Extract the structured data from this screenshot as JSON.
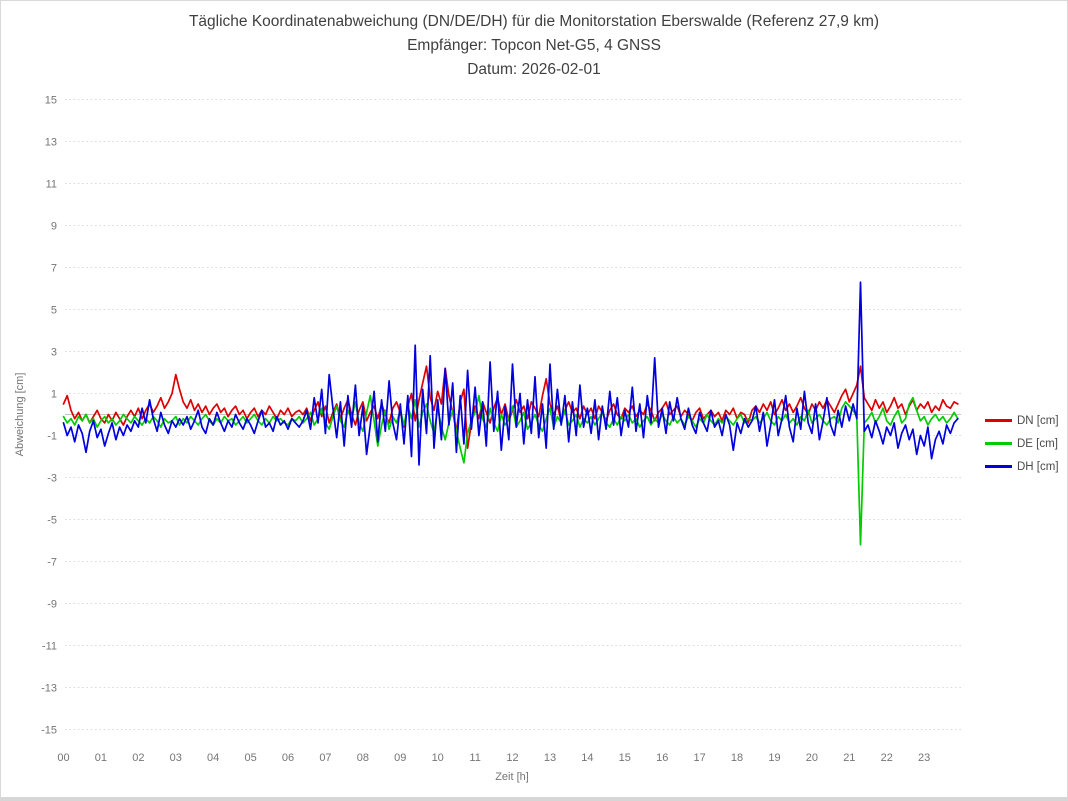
{
  "window": {
    "background": "#ffffff",
    "border_color": "#d9d9d9"
  },
  "chart_data": {
    "type": "line",
    "title_lines": [
      "Tägliche Koordinatenabweichung (DN/DE/DH) für die Monitorstation Eberswalde (Referenz 27,9 km)",
      "Empfänger: Topcon Net-G5, 4 GNSS",
      "Datum: 2026-02-01"
    ],
    "xlabel": "Zeit [h]",
    "ylabel": "Abweichung [cm]",
    "xlim": [
      0,
      24
    ],
    "ylim": [
      -15,
      15
    ],
    "x_ticks": [
      "00",
      "01",
      "02",
      "03",
      "04",
      "05",
      "06",
      "07",
      "08",
      "09",
      "10",
      "11",
      "12",
      "13",
      "14",
      "15",
      "16",
      "17",
      "18",
      "19",
      "20",
      "21",
      "22",
      "23"
    ],
    "y_ticks": [
      15,
      13,
      11,
      9,
      7,
      5,
      3,
      1,
      -1,
      -3,
      -5,
      -7,
      -9,
      -11,
      -13,
      -15
    ],
    "grid": "horizontal-dotted",
    "zero_line": true,
    "legend_position": "right",
    "tick_color": "#757575",
    "grid_color": "#d9d9d9",
    "zero_line_color": "#c4c4c4",
    "x_start": 0.0,
    "x_step": 0.1,
    "series": [
      {
        "name": "DN [cm]",
        "color": "#dd0000",
        "values": [
          0.5,
          0.9,
          0.2,
          -0.2,
          0.1,
          -0.3,
          0.0,
          -0.4,
          -0.1,
          0.2,
          -0.2,
          -0.4,
          0.0,
          -0.3,
          0.1,
          -0.2,
          -0.5,
          -0.1,
          0.2,
          -0.1,
          0.3,
          -0.2,
          0.2,
          0.5,
          0.1,
          0.4,
          0.8,
          0.3,
          0.6,
          1.0,
          1.9,
          1.2,
          0.6,
          0.3,
          0.7,
          0.2,
          0.5,
          0.1,
          0.4,
          0.0,
          0.3,
          0.5,
          0.1,
          0.3,
          -0.1,
          0.2,
          0.4,
          0.0,
          0.2,
          -0.2,
          0.1,
          0.3,
          -0.1,
          0.2,
          0.0,
          0.4,
          0.1,
          -0.2,
          0.2,
          0.0,
          0.3,
          -0.1,
          0.1,
          0.2,
          0.0,
          0.3,
          -0.3,
          0.2,
          0.6,
          -0.1,
          0.4,
          -0.4,
          0.1,
          0.5,
          -0.2,
          0.3,
          0.7,
          0.0,
          -0.5,
          0.2,
          0.6,
          -0.3,
          0.1,
          0.4,
          -0.2,
          0.5,
          0.0,
          -0.4,
          0.3,
          0.6,
          0.1,
          -0.6,
          0.4,
          1.0,
          -0.3,
          0.7,
          1.5,
          2.3,
          0.8,
          0.2,
          1.1,
          0.5,
          2.2,
          0.9,
          0.1,
          -0.8,
          0.6,
          1.2,
          -1.6,
          -0.4,
          0.4,
          -0.2,
          0.6,
          0.1,
          -0.4,
          0.3,
          0.8,
          0.0,
          0.5,
          -0.3,
          0.2,
          0.7,
          0.1,
          0.4,
          -0.2,
          0.6,
          0.3,
          -0.1,
          0.9,
          1.7,
          0.5,
          0.0,
          0.4,
          -0.3,
          0.2,
          0.6,
          0.1,
          0.3,
          -0.2,
          0.4,
          0.0,
          0.3,
          -0.2,
          0.4,
          0.1,
          -0.3,
          0.2,
          0.5,
          0.0,
          -0.2,
          0.3,
          0.1,
          0.4,
          -0.1,
          0.2,
          0.0,
          0.5,
          0.2,
          -0.3,
          0.1,
          0.3,
          0.6,
          0.0,
          0.2,
          0.4,
          -0.1,
          0.2,
          0.0,
          -0.3,
          0.1,
          0.3,
          -0.2,
          0.0,
          0.2,
          -0.1,
          0.1,
          -0.3,
          0.2,
          0.0,
          0.3,
          -0.2,
          0.1,
          0.0,
          -0.4,
          0.2,
          0.4,
          0.1,
          0.5,
          0.2,
          0.6,
          0.0,
          0.3,
          0.7,
          0.2,
          0.5,
          0.1,
          0.4,
          0.8,
          0.3,
          0.0,
          0.5,
          0.2,
          0.6,
          0.3,
          0.7,
          0.4,
          0.1,
          0.5,
          0.9,
          1.2,
          0.6,
          1.0,
          1.4,
          2.3,
          0.8,
          0.5,
          0.2,
          0.7,
          0.3,
          0.6,
          0.1,
          0.4,
          0.8,
          0.3,
          0.5,
          0.0,
          0.4,
          0.7,
          0.2,
          0.5,
          0.3,
          0.6,
          0.1,
          0.4,
          0.2,
          0.7,
          0.4,
          0.3,
          0.6,
          0.5
        ]
      },
      {
        "name": "DE [cm]",
        "color": "#00cc00",
        "values": [
          -0.1,
          -0.4,
          -0.2,
          -0.5,
          -0.1,
          -0.3,
          0.0,
          -0.4,
          -0.2,
          -0.6,
          -0.3,
          -0.1,
          -0.4,
          -0.2,
          -0.5,
          -0.3,
          0.0,
          -0.2,
          -0.4,
          -0.1,
          -0.3,
          -0.5,
          -0.2,
          -0.4,
          -0.1,
          -0.3,
          -0.6,
          -0.2,
          -0.4,
          -0.3,
          -0.1,
          -0.5,
          -0.2,
          -0.4,
          -0.1,
          -0.3,
          -0.5,
          -0.2,
          0.0,
          -0.3,
          -0.5,
          -0.2,
          -0.4,
          -0.1,
          -0.3,
          -0.2,
          -0.5,
          -0.3,
          -0.1,
          -0.4,
          -0.2,
          0.0,
          -0.3,
          -0.5,
          -0.2,
          -0.4,
          -0.1,
          -0.3,
          -0.2,
          -0.4,
          -0.5,
          -0.2,
          -0.3,
          -0.1,
          -0.4,
          -0.2,
          0.1,
          -0.5,
          -0.2,
          0.3,
          -0.4,
          -0.7,
          -0.1,
          0.4,
          -0.3,
          -0.6,
          0.2,
          -0.2,
          0.6,
          -0.4,
          -0.8,
          0.1,
          0.9,
          -0.3,
          -1.5,
          -0.5,
          0.2,
          -0.7,
          -0.1,
          -0.4,
          0.2,
          -0.5,
          0.4,
          -0.2,
          0.7,
          -0.6,
          0.1,
          0.5,
          -0.3,
          -0.9,
          0.3,
          -0.6,
          -1.2,
          -0.4,
          0.2,
          -0.8,
          -1.6,
          -2.3,
          -0.9,
          -0.3,
          0.1,
          0.9,
          -0.2,
          -0.6,
          0.3,
          -0.4,
          -0.8,
          0.0,
          -0.5,
          -0.2,
          0.4,
          -0.6,
          -0.3,
          0.1,
          -0.7,
          -0.4,
          0.0,
          -0.5,
          -0.8,
          -0.2,
          0.3,
          -0.6,
          -0.1,
          -0.4,
          0.2,
          -0.5,
          -0.3,
          0.0,
          -0.6,
          -0.2,
          -0.4,
          -0.1,
          -0.5,
          -0.2,
          0.1,
          -0.4,
          -0.6,
          -0.2,
          -0.5,
          -0.1,
          -0.3,
          0.0,
          -0.4,
          -0.2,
          -0.6,
          -0.3,
          -0.1,
          -0.5,
          -0.2,
          -0.4,
          0.0,
          -0.3,
          -0.5,
          -0.1,
          -0.4,
          -0.2,
          -0.5,
          -0.1,
          -0.3,
          -0.6,
          -0.2,
          -0.4,
          0.0,
          -0.3,
          -0.5,
          -0.2,
          -0.4,
          -0.1,
          -0.3,
          -0.5,
          -0.2,
          0.0,
          -0.4,
          -0.2,
          -0.3,
          -0.1,
          -0.4,
          -0.2,
          0.1,
          -0.3,
          -0.5,
          -0.1,
          -0.3,
          0.0,
          -0.4,
          -0.2,
          -0.5,
          -0.1,
          -0.3,
          0.2,
          -0.4,
          -0.2,
          0.0,
          -0.3,
          -0.5,
          -0.2,
          -0.1,
          -0.4,
          0.3,
          0.6,
          0.4,
          0.2,
          -0.1,
          -6.2,
          -0.4,
          -0.2,
          0.1,
          -0.4,
          -0.1,
          0.3,
          -0.3,
          -0.5,
          -0.1,
          0.2,
          -0.4,
          -0.2,
          0.5,
          0.8,
          0.2,
          -0.3,
          -0.1,
          -0.5,
          -0.2,
          0.0,
          -0.3,
          -0.1,
          -0.4,
          -0.2,
          0.1,
          -0.2
        ]
      },
      {
        "name": "DH [cm]",
        "color": "#0000dd",
        "values": [
          -0.4,
          -1.0,
          -0.6,
          -1.3,
          -0.5,
          -0.9,
          -1.8,
          -0.8,
          -0.3,
          -1.1,
          -0.7,
          -1.5,
          -0.9,
          -0.4,
          -1.2,
          -0.6,
          -1.0,
          -0.5,
          -0.8,
          -0.3,
          -0.6,
          0.3,
          -0.4,
          0.7,
          -0.2,
          -0.8,
          0.1,
          -0.5,
          -0.9,
          -0.3,
          -0.6,
          -0.2,
          -0.5,
          -0.1,
          -0.7,
          -0.3,
          0.2,
          -0.6,
          -0.9,
          -0.2,
          -0.5,
          0.1,
          -0.4,
          -0.8,
          -0.3,
          -0.6,
          0.0,
          -0.4,
          -0.7,
          -0.2,
          -0.5,
          -0.9,
          -0.3,
          0.2,
          -0.6,
          -0.4,
          -0.8,
          -0.1,
          -0.5,
          -0.3,
          -0.7,
          -0.2,
          -0.4,
          -0.6,
          -0.3,
          0.2,
          -0.7,
          0.8,
          -0.4,
          1.2,
          -0.9,
          1.9,
          0.3,
          -1.1,
          0.6,
          -1.5,
          0.9,
          -0.6,
          1.4,
          -1.0,
          0.4,
          -1.9,
          -0.5,
          1.1,
          -1.3,
          0.7,
          -0.8,
          1.6,
          -0.4,
          -1.2,
          0.5,
          -1.4,
          0.9,
          -2.0,
          3.3,
          -2.4,
          1.2,
          -0.9,
          2.8,
          -1.6,
          0.7,
          -1.2,
          2.2,
          -0.5,
          1.5,
          -1.8,
          0.9,
          -1.4,
          2.1,
          -0.7,
          1.3,
          -1.0,
          0.6,
          -1.5,
          2.5,
          -0.8,
          1.1,
          -1.7,
          0.4,
          -1.2,
          2.4,
          -0.6,
          1.0,
          -1.4,
          0.7,
          -0.9,
          1.8,
          -1.1,
          0.5,
          -1.6,
          2.4,
          -0.7,
          1.2,
          -0.5,
          0.9,
          -1.3,
          0.6,
          -1.0,
          1.4,
          -0.6,
          0.3,
          -0.9,
          0.7,
          -1.2,
          0.4,
          -0.7,
          1.1,
          -0.5,
          0.8,
          -1.0,
          0.2,
          -0.6,
          1.3,
          -0.8,
          0.5,
          -1.1,
          0.9,
          -0.4,
          2.7,
          -0.6,
          0.3,
          -0.9,
          0.6,
          -0.3,
          0.8,
          -0.2,
          -0.7,
          0.3,
          -0.5,
          -0.9,
          0.1,
          -0.4,
          -0.8,
          0.2,
          -0.6,
          -0.3,
          -1.0,
          0.0,
          -0.5,
          -1.7,
          -0.4,
          -0.9,
          -0.2,
          -0.6,
          -0.3,
          0.4,
          -0.8,
          0.1,
          -1.5,
          -0.5,
          0.7,
          -1.0,
          -0.2,
          0.9,
          -0.6,
          -1.3,
          0.3,
          -0.7,
          1.1,
          -0.4,
          -0.9,
          0.5,
          -1.2,
          -0.3,
          0.8,
          -0.5,
          -1.0,
          0.2,
          -0.6,
          0.4,
          -0.3,
          0.5,
          -0.2,
          6.3,
          -0.8,
          -0.5,
          -1.1,
          -0.3,
          -0.8,
          -1.4,
          -0.6,
          -1.0,
          -0.4,
          -1.6,
          -0.9,
          -0.5,
          -1.2,
          -0.7,
          -1.9,
          -1.0,
          -1.5,
          -0.6,
          -2.1,
          -1.2,
          -0.8,
          -1.4,
          -0.5,
          -0.9,
          -0.4,
          -0.2
        ]
      }
    ]
  }
}
